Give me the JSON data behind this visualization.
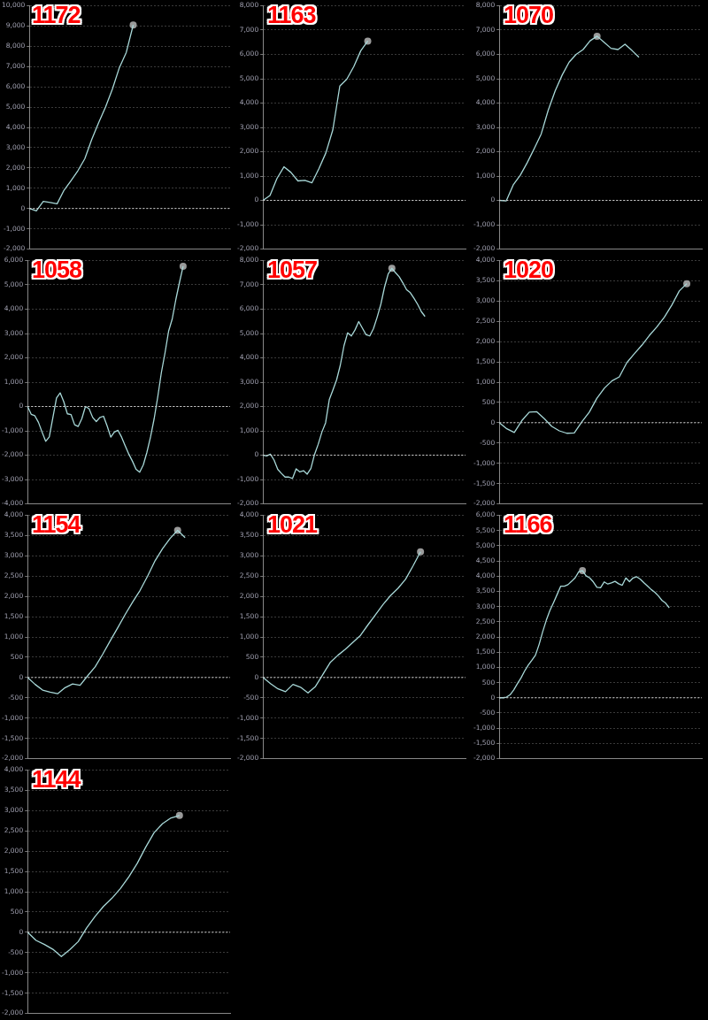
{
  "chart_data": [
    {
      "type": "line",
      "title": "1172",
      "ref_lines": [
        {
          "axis": "y",
          "value": 0,
          "color": "#cccccc",
          "line_style": "dashed"
        }
      ],
      "tick_labels": "y",
      "grid": "y",
      "ylim": [
        -2000,
        10000
      ],
      "yticks": [
        {
          "value": -2000,
          "label": "-2,000"
        },
        {
          "value": -1000,
          "label": "-1,000"
        },
        0,
        {
          "value": 1000,
          "label": "1,000"
        },
        {
          "value": 2000,
          "label": "2,000"
        },
        {
          "value": 3000,
          "label": "3,000"
        },
        {
          "value": 4000,
          "label": "4,000"
        },
        {
          "value": 5000,
          "label": "5,000"
        },
        {
          "value": 6000,
          "label": "6,000"
        },
        {
          "value": 7000,
          "label": "7,000"
        },
        {
          "value": 8000,
          "label": "8,000"
        },
        {
          "value": 9000,
          "label": "9,000"
        },
        {
          "value": 10000,
          "label": "10,000"
        }
      ],
      "categories": [
        null,
        null,
        null,
        null,
        null,
        null,
        null,
        null,
        null,
        null,
        null,
        null,
        null,
        null,
        null,
        null,
        null,
        null,
        null,
        null,
        null,
        null,
        null,
        null,
        null,
        null,
        null,
        null,
        null,
        null
      ],
      "series": [
        {
          "type": "line",
          "marker": "none",
          "color": "#a8d8d8",
          "values": [
            0,
            -120,
            350,
            300,
            230,
            900,
            1370,
            1860,
            2450,
            3400,
            4230,
            5000,
            5900,
            6950,
            7700,
            9050,
            null,
            null,
            null,
            null,
            null,
            null,
            null,
            null,
            null,
            null,
            null,
            null,
            null,
            null
          ]
        },
        {
          "type": "scatter",
          "marker": "circle",
          "color": "#9a9a9a",
          "values": [
            null,
            null,
            null,
            null,
            null,
            null,
            null,
            null,
            null,
            null,
            null,
            null,
            null,
            null,
            null,
            9050,
            null,
            null,
            null,
            null,
            null,
            null,
            null,
            null,
            null,
            null,
            null,
            null,
            null,
            null
          ]
        }
      ]
    },
    {
      "type": "line",
      "title": "1163",
      "ref_lines": [
        {
          "axis": "y",
          "value": 0,
          "color": "#cccccc",
          "line_style": "dashed"
        }
      ],
      "tick_labels": "y",
      "grid": "y",
      "ylim": [
        -2000,
        8000
      ],
      "yticks": [
        {
          "value": -2000,
          "label": "-2,000"
        },
        {
          "value": -1000,
          "label": "-1,000"
        },
        0,
        {
          "value": 1000,
          "label": "1,000"
        },
        {
          "value": 2000,
          "label": "2,000"
        },
        {
          "value": 3000,
          "label": "3,000"
        },
        {
          "value": 4000,
          "label": "4,000"
        },
        {
          "value": 5000,
          "label": "5,000"
        },
        {
          "value": 6000,
          "label": "6,000"
        },
        {
          "value": 7000,
          "label": "7,000"
        },
        {
          "value": 8000,
          "label": "8,000"
        }
      ],
      "categories": [
        null,
        null,
        null,
        null,
        null,
        null,
        null,
        null,
        null,
        null,
        null,
        null,
        null,
        null,
        null,
        null,
        null,
        null,
        null,
        null,
        null,
        null,
        null,
        null,
        null,
        null,
        null,
        null,
        null,
        null
      ],
      "series": [
        {
          "type": "line",
          "marker": "none",
          "color": "#a8d8d8",
          "values": [
            0,
            200,
            900,
            1380,
            1150,
            800,
            820,
            720,
            1300,
            1950,
            2900,
            4700,
            4980,
            5500,
            6150,
            6550,
            null,
            null,
            null,
            null,
            null,
            null,
            null,
            null,
            null,
            null,
            null,
            null,
            null,
            null
          ]
        },
        {
          "type": "scatter",
          "marker": "circle",
          "color": "#9a9a9a",
          "values": [
            null,
            null,
            null,
            null,
            null,
            null,
            null,
            null,
            null,
            null,
            null,
            null,
            null,
            null,
            null,
            6550,
            null,
            null,
            null,
            null,
            null,
            null,
            null,
            null,
            null,
            null,
            null,
            null,
            null,
            null
          ]
        }
      ]
    },
    {
      "type": "line",
      "title": "1070",
      "ref_lines": [
        {
          "axis": "y",
          "value": 0,
          "color": "#cccccc",
          "line_style": "dashed"
        }
      ],
      "tick_labels": "y",
      "grid": "y",
      "ylim": [
        -2000,
        8000
      ],
      "yticks": [
        {
          "value": -2000,
          "label": "-2,000"
        },
        {
          "value": -1000,
          "label": "-1,000"
        },
        0,
        {
          "value": 1000,
          "label": "1,000"
        },
        {
          "value": 2000,
          "label": "2,000"
        },
        {
          "value": 3000,
          "label": "3,000"
        },
        {
          "value": 4000,
          "label": "4,000"
        },
        {
          "value": 5000,
          "label": "5,000"
        },
        {
          "value": 6000,
          "label": "6,000"
        },
        {
          "value": 7000,
          "label": "7,000"
        },
        {
          "value": 8000,
          "label": "8,000"
        }
      ],
      "categories": [
        null,
        null,
        null,
        null,
        null,
        null,
        null,
        null,
        null,
        null,
        null,
        null,
        null,
        null,
        null,
        null,
        null,
        null,
        null,
        null,
        null,
        null,
        null,
        null,
        null,
        null,
        null,
        null,
        null,
        null
      ],
      "series": [
        {
          "type": "line",
          "marker": "none",
          "color": "#a8d8d8",
          "values": [
            0,
            -20,
            640,
            1030,
            1550,
            2130,
            2730,
            3700,
            4500,
            5150,
            5680,
            6000,
            6200,
            6560,
            6750,
            6500,
            6250,
            6200,
            6420,
            6160,
            5880,
            null,
            null,
            null,
            null,
            null,
            null,
            null,
            null,
            null
          ]
        },
        {
          "type": "scatter",
          "marker": "circle",
          "color": "#9a9a9a",
          "values": [
            null,
            null,
            null,
            null,
            null,
            null,
            null,
            null,
            null,
            null,
            null,
            null,
            null,
            null,
            6750,
            null,
            null,
            null,
            null,
            null,
            null,
            null,
            null,
            null,
            null,
            null,
            null,
            null,
            null,
            null
          ]
        }
      ]
    },
    {
      "type": "line",
      "title": "1058",
      "ref_lines": [
        {
          "axis": "y",
          "value": 0,
          "color": "#cccccc",
          "line_style": "dashed"
        }
      ],
      "tick_labels": "y",
      "grid": "y",
      "ylim": [
        -4000,
        6000
      ],
      "yticks": [
        {
          "value": -4000,
          "label": "-4,000"
        },
        {
          "value": -3000,
          "label": "-3,000"
        },
        {
          "value": -2000,
          "label": "-2,000"
        },
        {
          "value": -1000,
          "label": "-1,000"
        },
        0,
        {
          "value": 1000,
          "label": "1,000"
        },
        {
          "value": 2000,
          "label": "2,000"
        },
        {
          "value": 3000,
          "label": "3,000"
        },
        {
          "value": 4000,
          "label": "4,000"
        },
        {
          "value": 5000,
          "label": "5,000"
        },
        {
          "value": 6000,
          "label": "6,000"
        }
      ],
      "categories": [
        null,
        null,
        null,
        null,
        null,
        null,
        null,
        null,
        null,
        null,
        null,
        null,
        null,
        null,
        null,
        null,
        null,
        null,
        null,
        null,
        null,
        null,
        null,
        null,
        null,
        null,
        null,
        null,
        null,
        null,
        null,
        null,
        null,
        null,
        null,
        null,
        null,
        null,
        null,
        null,
        null,
        null,
        null,
        null,
        null,
        null,
        null,
        null,
        null,
        null,
        null,
        null,
        null,
        null,
        null,
        null,
        null
      ],
      "series": [
        {
          "type": "line",
          "marker": "none",
          "color": "#a8d8d8",
          "values": [
            0,
            -320,
            -380,
            -650,
            -1050,
            -1430,
            -1250,
            -450,
            350,
            560,
            200,
            -300,
            -330,
            -750,
            -820,
            -500,
            0,
            -90,
            -450,
            -620,
            -450,
            -400,
            -800,
            -1260,
            -1050,
            -980,
            -1260,
            -1620,
            -1960,
            -2250,
            -2580,
            -2700,
            -2400,
            -1880,
            -1250,
            -500,
            400,
            1400,
            2200,
            3100,
            3600,
            4400,
            5100,
            5760,
            null,
            null,
            null,
            null,
            null,
            null,
            null,
            null,
            null,
            null,
            null,
            null,
            null
          ]
        },
        {
          "type": "scatter",
          "marker": "circle",
          "color": "#9a9a9a",
          "values": [
            null,
            null,
            null,
            null,
            null,
            null,
            null,
            null,
            null,
            null,
            null,
            null,
            null,
            null,
            null,
            null,
            null,
            null,
            null,
            null,
            null,
            null,
            null,
            null,
            null,
            null,
            null,
            null,
            null,
            null,
            null,
            null,
            null,
            null,
            null,
            null,
            null,
            null,
            null,
            null,
            null,
            null,
            null,
            5760,
            null,
            null,
            null,
            null,
            null,
            null,
            null,
            null,
            null,
            null,
            null,
            null,
            null
          ]
        }
      ]
    },
    {
      "type": "line",
      "title": "1057",
      "ref_lines": [
        {
          "axis": "y",
          "value": 0,
          "color": "#cccccc",
          "line_style": "dashed"
        }
      ],
      "tick_labels": "y",
      "grid": "y",
      "ylim": [
        -2000,
        8000
      ],
      "yticks": [
        {
          "value": -2000,
          "label": "-2,000"
        },
        {
          "value": -1000,
          "label": "-1,000"
        },
        0,
        {
          "value": 1000,
          "label": "1,000"
        },
        {
          "value": 2000,
          "label": "2,000"
        },
        {
          "value": 3000,
          "label": "3,000"
        },
        {
          "value": 4000,
          "label": "4,000"
        },
        {
          "value": 5000,
          "label": "5,000"
        },
        {
          "value": 6000,
          "label": "6,000"
        },
        {
          "value": 7000,
          "label": "7,000"
        },
        {
          "value": 8000,
          "label": "8,000"
        }
      ],
      "categories": [
        null,
        null,
        null,
        null,
        null,
        null,
        null,
        null,
        null,
        null,
        null,
        null,
        null,
        null,
        null,
        null,
        null,
        null,
        null,
        null,
        null,
        null,
        null,
        null,
        null,
        null,
        null,
        null,
        null,
        null,
        null,
        null,
        null,
        null,
        null,
        null,
        null,
        null,
        null,
        null,
        null,
        null,
        null,
        null,
        null,
        null,
        null,
        null,
        null,
        null,
        null,
        null,
        null,
        null,
        null,
        null
      ],
      "series": [
        {
          "type": "line",
          "marker": "none",
          "color": "#a8d8d8",
          "values": [
            0,
            -30,
            40,
            -200,
            -580,
            -750,
            -900,
            -900,
            -960,
            -560,
            -690,
            -640,
            -780,
            -550,
            30,
            450,
            950,
            1330,
            2280,
            2680,
            3100,
            3700,
            4500,
            5030,
            4900,
            5150,
            5490,
            5220,
            4950,
            4900,
            5200,
            5670,
            6200,
            6900,
            7450,
            7680,
            7500,
            7330,
            7080,
            6800,
            6680,
            6450,
            6200,
            5900,
            5700,
            null,
            null,
            null,
            null,
            null,
            null,
            null,
            null,
            null,
            null,
            null
          ]
        },
        {
          "type": "scatter",
          "marker": "circle",
          "color": "#9a9a9a",
          "values": [
            null,
            null,
            null,
            null,
            null,
            null,
            null,
            null,
            null,
            null,
            null,
            null,
            null,
            null,
            null,
            null,
            null,
            null,
            null,
            null,
            null,
            null,
            null,
            null,
            null,
            null,
            null,
            null,
            null,
            null,
            null,
            null,
            null,
            null,
            null,
            7680,
            null,
            null,
            null,
            null,
            null,
            null,
            null,
            null,
            null,
            null,
            null,
            null,
            null,
            null,
            null,
            null,
            null,
            null,
            null,
            null
          ]
        }
      ]
    },
    {
      "type": "line",
      "title": "1020",
      "ref_lines": [
        {
          "axis": "y",
          "value": 0,
          "color": "#cccccc",
          "line_style": "dashed"
        }
      ],
      "tick_labels": "y",
      "grid": "y",
      "ylim": [
        -2000,
        4000
      ],
      "yticks": [
        {
          "value": -2000,
          "label": "-2,000"
        },
        {
          "value": -1500,
          "label": "-1,500"
        },
        {
          "value": -1000,
          "label": "-1,000"
        },
        -500,
        0,
        500,
        {
          "value": 1000,
          "label": "1,000"
        },
        {
          "value": 1500,
          "label": "1,500"
        },
        {
          "value": 2000,
          "label": "2,000"
        },
        {
          "value": 2500,
          "label": "2,500"
        },
        {
          "value": 3000,
          "label": "3,000"
        },
        {
          "value": 3500,
          "label": "3,500"
        },
        {
          "value": 4000,
          "label": "4,000"
        }
      ],
      "categories": [
        null,
        null,
        null,
        null,
        null,
        null,
        null,
        null,
        null,
        null,
        null,
        null,
        null,
        null,
        null,
        null,
        null,
        null,
        null,
        null,
        null,
        null,
        null,
        null,
        null,
        null,
        null,
        null
      ],
      "series": [
        {
          "type": "line",
          "marker": "none",
          "color": "#a8d8d8",
          "values": [
            0,
            -150,
            -240,
            50,
            260,
            270,
            100,
            -90,
            -200,
            -260,
            -250,
            20,
            260,
            600,
            850,
            1030,
            1130,
            1480,
            1700,
            1910,
            2150,
            2360,
            2600,
            2900,
            3250,
            3430,
            null,
            null
          ]
        },
        {
          "type": "scatter",
          "marker": "circle",
          "color": "#9a9a9a",
          "values": [
            null,
            null,
            null,
            null,
            null,
            null,
            null,
            null,
            null,
            null,
            null,
            null,
            null,
            null,
            null,
            null,
            null,
            null,
            null,
            null,
            null,
            null,
            null,
            null,
            null,
            3430,
            null,
            null
          ]
        }
      ]
    },
    {
      "type": "line",
      "title": "1154",
      "ref_lines": [
        {
          "axis": "y",
          "value": 0,
          "color": "#cccccc",
          "line_style": "dashed"
        }
      ],
      "tick_labels": "y",
      "grid": "y",
      "ylim": [
        -2000,
        4000
      ],
      "yticks": [
        {
          "value": -2000,
          "label": "-2,000"
        },
        {
          "value": -1500,
          "label": "-1,500"
        },
        {
          "value": -1000,
          "label": "-1,000"
        },
        -500,
        0,
        500,
        {
          "value": 1000,
          "label": "1,000"
        },
        {
          "value": 1500,
          "label": "1,500"
        },
        {
          "value": 2000,
          "label": "2,000"
        },
        {
          "value": 2500,
          "label": "2,500"
        },
        {
          "value": 3000,
          "label": "3,000"
        },
        {
          "value": 3500,
          "label": "3,500"
        },
        {
          "value": 4000,
          "label": "4,000"
        }
      ],
      "categories": [
        null,
        null,
        null,
        null,
        null,
        null,
        null,
        null,
        null,
        null,
        null,
        null,
        null,
        null,
        null,
        null,
        null,
        null,
        null,
        null,
        null,
        null,
        null,
        null,
        null,
        null,
        null,
        null
      ],
      "series": [
        {
          "type": "line",
          "marker": "none",
          "color": "#a8d8d8",
          "values": [
            0,
            -170,
            -310,
            -360,
            -400,
            -250,
            -160,
            -190,
            40,
            260,
            570,
            900,
            1220,
            1550,
            1860,
            2150,
            2500,
            2880,
            3180,
            3430,
            3630,
            3450,
            null,
            null,
            null,
            null,
            null,
            null
          ]
        },
        {
          "type": "scatter",
          "marker": "circle",
          "color": "#9a9a9a",
          "values": [
            null,
            null,
            null,
            null,
            null,
            null,
            null,
            null,
            null,
            null,
            null,
            null,
            null,
            null,
            null,
            null,
            null,
            null,
            null,
            null,
            3630,
            null,
            null,
            null,
            null,
            null,
            null,
            null
          ]
        }
      ]
    },
    {
      "type": "line",
      "title": "1021",
      "ref_lines": [
        {
          "axis": "y",
          "value": 0,
          "color": "#cccccc",
          "line_style": "dashed"
        }
      ],
      "tick_labels": "y",
      "grid": "y",
      "ylim": [
        -2000,
        4000
      ],
      "yticks": [
        {
          "value": -2000,
          "label": "-2,000"
        },
        {
          "value": -1500,
          "label": "-1,500"
        },
        {
          "value": -1000,
          "label": "-1,000"
        },
        -500,
        0,
        500,
        {
          "value": 1000,
          "label": "1,000"
        },
        {
          "value": 1500,
          "label": "1,500"
        },
        {
          "value": 2000,
          "label": "2,000"
        },
        {
          "value": 2500,
          "label": "2,500"
        },
        {
          "value": 3000,
          "label": "3,000"
        },
        {
          "value": 3500,
          "label": "3,500"
        },
        {
          "value": 4000,
          "label": "4,000"
        }
      ],
      "categories": [
        null,
        null,
        null,
        null,
        null,
        null,
        null,
        null,
        null,
        null,
        null,
        null,
        null,
        null,
        null,
        null,
        null,
        null,
        null,
        null,
        null,
        null,
        null,
        null,
        null,
        null,
        null,
        null
      ],
      "series": [
        {
          "type": "line",
          "marker": "none",
          "color": "#a8d8d8",
          "values": [
            0,
            -150,
            -280,
            -350,
            -170,
            -240,
            -380,
            -220,
            80,
            380,
            550,
            700,
            870,
            1040,
            1300,
            1550,
            1800,
            2020,
            2200,
            2420,
            2750,
            3100,
            null,
            null,
            null,
            null,
            null,
            null
          ]
        },
        {
          "type": "scatter",
          "marker": "circle",
          "color": "#9a9a9a",
          "values": [
            null,
            null,
            null,
            null,
            null,
            null,
            null,
            null,
            null,
            null,
            null,
            null,
            null,
            null,
            null,
            null,
            null,
            null,
            null,
            null,
            null,
            3100,
            null,
            null,
            null,
            null,
            null,
            null
          ]
        }
      ]
    },
    {
      "type": "line",
      "title": "1166",
      "ref_lines": [
        {
          "axis": "y",
          "value": 0,
          "color": "#cccccc",
          "line_style": "dashed"
        }
      ],
      "tick_labels": "y",
      "grid": "y",
      "ylim": [
        -2000,
        6000
      ],
      "yticks": [
        {
          "value": -2000,
          "label": "-2,000"
        },
        {
          "value": -1500,
          "label": "-1,500"
        },
        {
          "value": -1000,
          "label": "-1,000"
        },
        -500,
        0,
        500,
        {
          "value": 1000,
          "label": "1,000"
        },
        {
          "value": 1500,
          "label": "1,500"
        },
        {
          "value": 2000,
          "label": "2,000"
        },
        {
          "value": 2500,
          "label": "2,500"
        },
        {
          "value": 3000,
          "label": "3,000"
        },
        {
          "value": 3500,
          "label": "3,500"
        },
        {
          "value": 4000,
          "label": "4,000"
        },
        {
          "value": 4500,
          "label": "4,500"
        },
        {
          "value": 5000,
          "label": "5,000"
        },
        {
          "value": 5500,
          "label": "5,500"
        },
        {
          "value": 6000,
          "label": "6,000"
        }
      ],
      "categories": [
        null,
        null,
        null,
        null,
        null,
        null,
        null,
        null,
        null,
        null,
        null,
        null,
        null,
        null,
        null,
        null,
        null,
        null,
        null,
        null,
        null,
        null,
        null,
        null,
        null,
        null,
        null,
        null,
        null,
        null,
        null,
        null,
        null,
        null,
        null,
        null,
        null,
        null,
        null,
        null,
        null,
        null,
        null,
        null,
        null,
        null,
        null,
        null,
        null,
        null,
        null,
        null,
        null,
        null,
        null,
        null,
        null
      ],
      "series": [
        {
          "type": "line",
          "marker": "none",
          "color": "#a8d8d8",
          "values": [
            0,
            0,
            20,
            100,
            260,
            460,
            650,
            880,
            1070,
            1230,
            1400,
            1750,
            2170,
            2550,
            2870,
            3130,
            3400,
            3670,
            3670,
            3720,
            3830,
            3950,
            4150,
            4180,
            4010,
            3940,
            3810,
            3630,
            3620,
            3810,
            3740,
            3780,
            3830,
            3750,
            3700,
            3940,
            3820,
            3940,
            3980,
            3900,
            3780,
            3670,
            3560,
            3470,
            3350,
            3200,
            3110,
            2960,
            null,
            null,
            null,
            null,
            null,
            null,
            null,
            null,
            null
          ]
        },
        {
          "type": "scatter",
          "marker": "circle",
          "color": "#9a9a9a",
          "values": [
            null,
            null,
            null,
            null,
            null,
            null,
            null,
            null,
            null,
            null,
            null,
            null,
            null,
            null,
            null,
            null,
            null,
            null,
            null,
            null,
            null,
            null,
            null,
            4180,
            null,
            null,
            null,
            null,
            null,
            null,
            null,
            null,
            null,
            null,
            null,
            null,
            null,
            null,
            null,
            null,
            null,
            null,
            null,
            null,
            null,
            null,
            null,
            null,
            null,
            null,
            null,
            null,
            null,
            null,
            null,
            null,
            null
          ]
        }
      ]
    },
    {
      "type": "line",
      "title": "1144",
      "ref_lines": [
        {
          "axis": "y",
          "value": 0,
          "color": "#cccccc",
          "line_style": "dashed"
        }
      ],
      "tick_labels": "y",
      "grid": "y",
      "ylim": [
        -2000,
        4000
      ],
      "yticks": [
        {
          "value": -2000,
          "label": "-2,000"
        },
        {
          "value": -1500,
          "label": "-1,500"
        },
        {
          "value": -1000,
          "label": "-1,000"
        },
        -500,
        0,
        500,
        {
          "value": 1000,
          "label": "1,000"
        },
        {
          "value": 1500,
          "label": "1,500"
        },
        {
          "value": 2000,
          "label": "2,000"
        },
        {
          "value": 2500,
          "label": "2,500"
        },
        {
          "value": 3000,
          "label": "3,000"
        },
        {
          "value": 3500,
          "label": "3,500"
        },
        {
          "value": 4000,
          "label": "4,000"
        }
      ],
      "categories": [
        null,
        null,
        null,
        null,
        null,
        null,
        null,
        null,
        null,
        null,
        null,
        null,
        null,
        null,
        null,
        null,
        null,
        null,
        null,
        null,
        null,
        null,
        null,
        null,
        null
      ],
      "series": [
        {
          "type": "line",
          "marker": "none",
          "color": "#a8d8d8",
          "values": [
            0,
            -200,
            -300,
            -420,
            -600,
            -430,
            -230,
            110,
            390,
            640,
            840,
            1080,
            1370,
            1700,
            2100,
            2460,
            2680,
            2820,
            2880,
            null,
            null,
            null,
            null,
            null,
            null
          ]
        },
        {
          "type": "scatter",
          "marker": "circle",
          "color": "#9a9a9a",
          "values": [
            null,
            null,
            null,
            null,
            null,
            null,
            null,
            null,
            null,
            null,
            null,
            null,
            null,
            null,
            null,
            null,
            null,
            null,
            2880,
            null,
            null,
            null,
            null,
            null,
            null
          ]
        }
      ]
    }
  ]
}
